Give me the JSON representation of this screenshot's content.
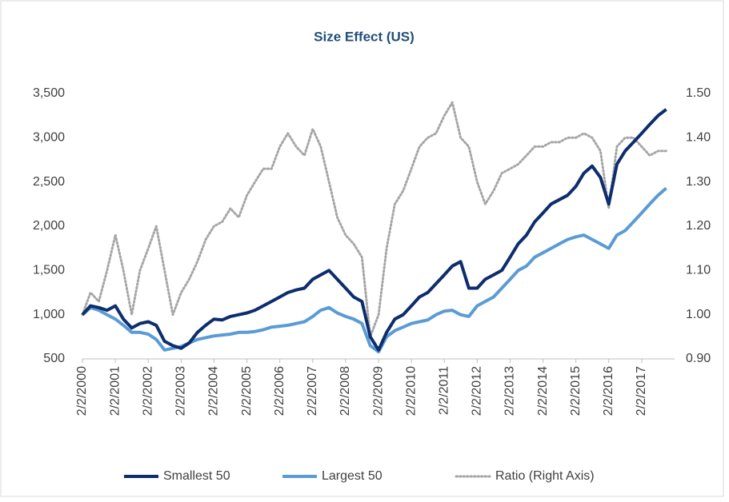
{
  "chart_data": {
    "type": "line",
    "title": "Size Effect (US)",
    "x": [
      "2/2/2000",
      "5/2/2000",
      "8/2/2000",
      "11/2/2000",
      "2/2/2001",
      "5/2/2001",
      "8/2/2001",
      "11/2/2001",
      "2/2/2002",
      "5/2/2002",
      "8/2/2002",
      "11/2/2002",
      "2/2/2003",
      "5/2/2003",
      "8/2/2003",
      "11/2/2003",
      "2/2/2004",
      "5/2/2004",
      "8/2/2004",
      "11/2/2004",
      "2/2/2005",
      "5/2/2005",
      "8/2/2005",
      "11/2/2005",
      "2/2/2006",
      "5/2/2006",
      "8/2/2006",
      "11/2/2006",
      "2/2/2007",
      "5/2/2007",
      "8/2/2007",
      "11/2/2007",
      "2/2/2008",
      "5/2/2008",
      "8/2/2008",
      "11/2/2008",
      "2/2/2009",
      "5/2/2009",
      "8/2/2009",
      "11/2/2009",
      "2/2/2010",
      "5/2/2010",
      "8/2/2010",
      "11/2/2010",
      "2/2/2011",
      "5/2/2011",
      "8/2/2011",
      "11/2/2011",
      "2/2/2012",
      "5/2/2012",
      "8/2/2012",
      "11/2/2012",
      "2/2/2013",
      "5/2/2013",
      "8/2/2013",
      "11/2/2013",
      "2/2/2014",
      "5/2/2014",
      "8/2/2014",
      "11/2/2014",
      "2/2/2015",
      "5/2/2015",
      "8/2/2015",
      "11/2/2015",
      "2/2/2016",
      "5/2/2016",
      "8/2/2016",
      "11/2/2016",
      "2/2/2017",
      "5/2/2017",
      "8/2/2017",
      "11/2/2017"
    ],
    "series": [
      {
        "name": "Smallest 50",
        "color": "#0d2d6c",
        "style": "solid",
        "values": [
          1000,
          1100,
          1080,
          1050,
          1100,
          950,
          850,
          900,
          920,
          880,
          700,
          650,
          620,
          680,
          800,
          880,
          950,
          940,
          980,
          1000,
          1020,
          1050,
          1100,
          1150,
          1200,
          1250,
          1280,
          1300,
          1400,
          1450,
          1500,
          1400,
          1300,
          1200,
          1150,
          750,
          600,
          800,
          950,
          1000,
          1100,
          1200,
          1250,
          1350,
          1450,
          1550,
          1600,
          1300,
          1300,
          1400,
          1450,
          1500,
          1650,
          1800,
          1900,
          2050,
          2150,
          2250,
          2300,
          2350,
          2450,
          2600,
          2680,
          2550,
          2250,
          2700,
          2850,
          2950,
          3050,
          3150,
          3250,
          3320
        ]
      },
      {
        "name": "Largest 50",
        "color": "#5b9bd5",
        "style": "solid",
        "values": [
          1000,
          1080,
          1050,
          1000,
          950,
          880,
          800,
          800,
          780,
          720,
          600,
          620,
          640,
          680,
          720,
          740,
          760,
          770,
          780,
          800,
          800,
          810,
          830,
          860,
          870,
          880,
          900,
          920,
          980,
          1050,
          1080,
          1020,
          980,
          950,
          900,
          650,
          580,
          750,
          820,
          860,
          900,
          920,
          940,
          1000,
          1040,
          1050,
          1000,
          980,
          1100,
          1150,
          1200,
          1300,
          1400,
          1500,
          1550,
          1650,
          1700,
          1750,
          1800,
          1850,
          1880,
          1900,
          1850,
          1800,
          1750,
          1900,
          1950,
          2050,
          2150,
          2250,
          2350,
          2430
        ]
      },
      {
        "name": "Ratio (Right Axis)",
        "color": "#a6a6a6",
        "style": "dotted",
        "axis": "y2",
        "values": [
          1.0,
          1.05,
          1.03,
          1.1,
          1.18,
          1.1,
          1.0,
          1.1,
          1.15,
          1.2,
          1.1,
          1.0,
          1.05,
          1.08,
          1.12,
          1.17,
          1.2,
          1.21,
          1.24,
          1.22,
          1.27,
          1.3,
          1.33,
          1.33,
          1.38,
          1.41,
          1.38,
          1.36,
          1.42,
          1.38,
          1.3,
          1.22,
          1.18,
          1.16,
          1.13,
          0.95,
          1.0,
          1.15,
          1.25,
          1.28,
          1.33,
          1.38,
          1.4,
          1.41,
          1.45,
          1.48,
          1.4,
          1.38,
          1.3,
          1.25,
          1.28,
          1.32,
          1.33,
          1.34,
          1.36,
          1.38,
          1.38,
          1.39,
          1.39,
          1.4,
          1.4,
          1.41,
          1.4,
          1.37,
          1.24,
          1.38,
          1.4,
          1.4,
          1.38,
          1.36,
          1.37,
          1.37
        ]
      }
    ],
    "xlim": [
      "2/2/2000",
      "2/2/2018"
    ],
    "xticks": [
      "2/2/2000",
      "2/2/2001",
      "2/2/2002",
      "2/2/2003",
      "2/2/2004",
      "2/2/2005",
      "2/2/2006",
      "2/2/2007",
      "2/2/2008",
      "2/2/2009",
      "2/2/2010",
      "2/2/2011",
      "2/2/2012",
      "2/2/2013",
      "2/2/2014",
      "2/2/2015",
      "2/2/2016",
      "2/2/2017"
    ],
    "ylim": [
      500,
      3500
    ],
    "yticks": [
      500,
      {
        "value": 1000,
        "label": "1,000"
      },
      {
        "value": 1500,
        "label": "1,500"
      },
      {
        "value": 2000,
        "label": "2,000"
      },
      {
        "value": 2500,
        "label": "2,500"
      },
      {
        "value": 3000,
        "label": "3,000"
      },
      {
        "value": 3500,
        "label": "3,500"
      }
    ],
    "y2lim": [
      0.9,
      1.5
    ],
    "y2ticks": [
      {
        "value": 0.9,
        "label": "0.90"
      },
      {
        "value": 1.0,
        "label": "1.00"
      },
      {
        "value": 1.1,
        "label": "1.10"
      },
      {
        "value": 1.2,
        "label": "1.20"
      },
      {
        "value": 1.3,
        "label": "1.30"
      },
      {
        "value": 1.4,
        "label": "1.40"
      },
      {
        "value": 1.5,
        "label": "1.50"
      }
    ],
    "legend": "bottom",
    "grid": false
  }
}
